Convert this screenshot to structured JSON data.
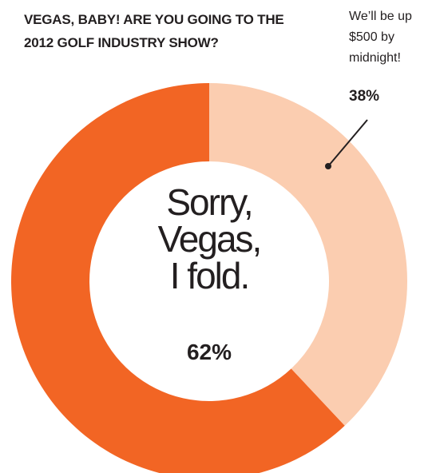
{
  "chart_data": {
    "type": "donut",
    "title": "VEGAS, BABY! ARE YOU GOING TO THE 2012 GOLF INDUSTRY SHOW?",
    "categories": [
      "We’ll be up $500 by midnight!",
      "Sorry, Vegas, I fold."
    ],
    "values": [
      38,
      62
    ],
    "value_labels": [
      "38%",
      "62%"
    ],
    "colors": [
      "#fbcdb0",
      "#f26524"
    ]
  }
}
